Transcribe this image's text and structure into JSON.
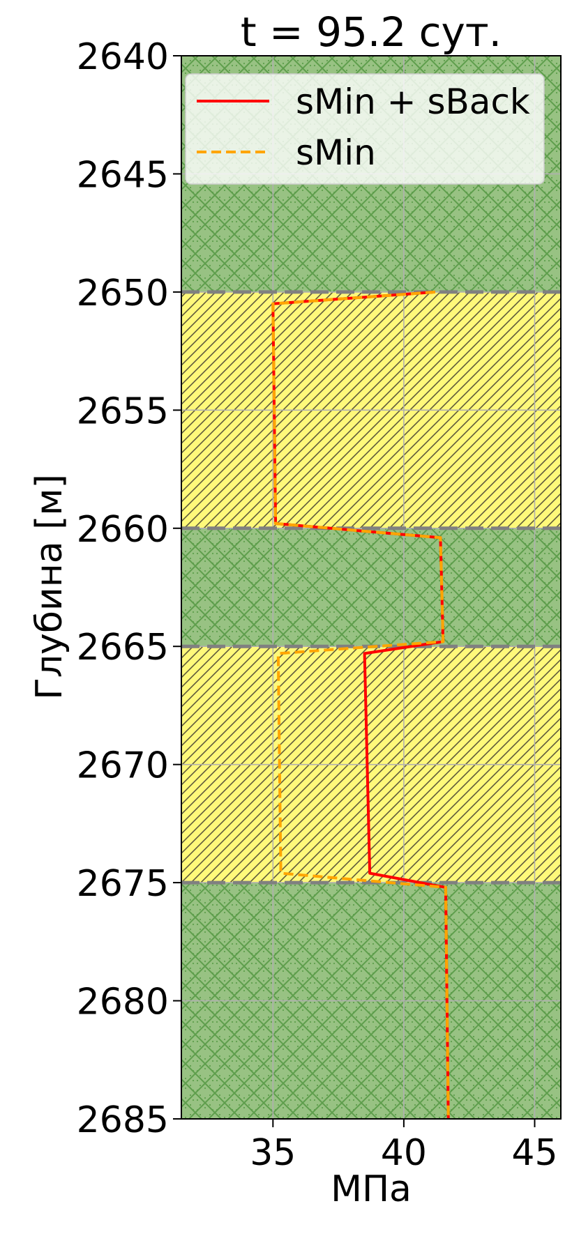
{
  "chart_data": {
    "type": "line",
    "title": "t = 95.2 сут.",
    "xlabel": "МПа",
    "ylabel": "Глубина [м]",
    "xlim": [
      31.5,
      46
    ],
    "ylim": [
      2685,
      2640
    ],
    "xticks": [
      35,
      40,
      45
    ],
    "yticks": [
      2640,
      2645,
      2650,
      2655,
      2660,
      2665,
      2670,
      2675,
      2680,
      2685
    ],
    "grid": true,
    "legend_position": "top-right",
    "layers": [
      {
        "top": 2640,
        "bottom": 2650,
        "kind": "green"
      },
      {
        "top": 2650,
        "bottom": 2660,
        "kind": "yellow"
      },
      {
        "top": 2660,
        "bottom": 2665,
        "kind": "green"
      },
      {
        "top": 2665,
        "bottom": 2675,
        "kind": "yellow"
      },
      {
        "top": 2675,
        "bottom": 2685,
        "kind": "green"
      }
    ],
    "boundaries": [
      2650,
      2660,
      2665,
      2675
    ],
    "colors": {
      "green_fill": "#98c283",
      "green_hatch": "#5e9e4c",
      "yellow_fill": "#fff97a",
      "yellow_hatch": "#5f5a3c",
      "boundary_line": "#808080",
      "grid": "#b0b0b0"
    },
    "series": [
      {
        "name": "sMin + sBack",
        "color": "#ff0000",
        "style": "solid",
        "points": [
          [
            41.2,
            2650.0
          ],
          [
            35.0,
            2650.5
          ],
          [
            35.1,
            2659.8
          ],
          [
            41.4,
            2660.4
          ],
          [
            41.5,
            2664.8
          ],
          [
            38.5,
            2665.3
          ],
          [
            38.7,
            2674.6
          ],
          [
            41.6,
            2675.2
          ],
          [
            41.7,
            2685.0
          ]
        ]
      },
      {
        "name": "sMin",
        "color": "#ffa500",
        "style": "dashed",
        "points": [
          [
            41.2,
            2650.0
          ],
          [
            35.0,
            2650.5
          ],
          [
            35.1,
            2659.8
          ],
          [
            41.4,
            2660.4
          ],
          [
            41.5,
            2664.8
          ],
          [
            35.2,
            2665.3
          ],
          [
            35.3,
            2674.6
          ],
          [
            41.6,
            2675.2
          ],
          [
            41.7,
            2685.0
          ]
        ]
      }
    ]
  }
}
